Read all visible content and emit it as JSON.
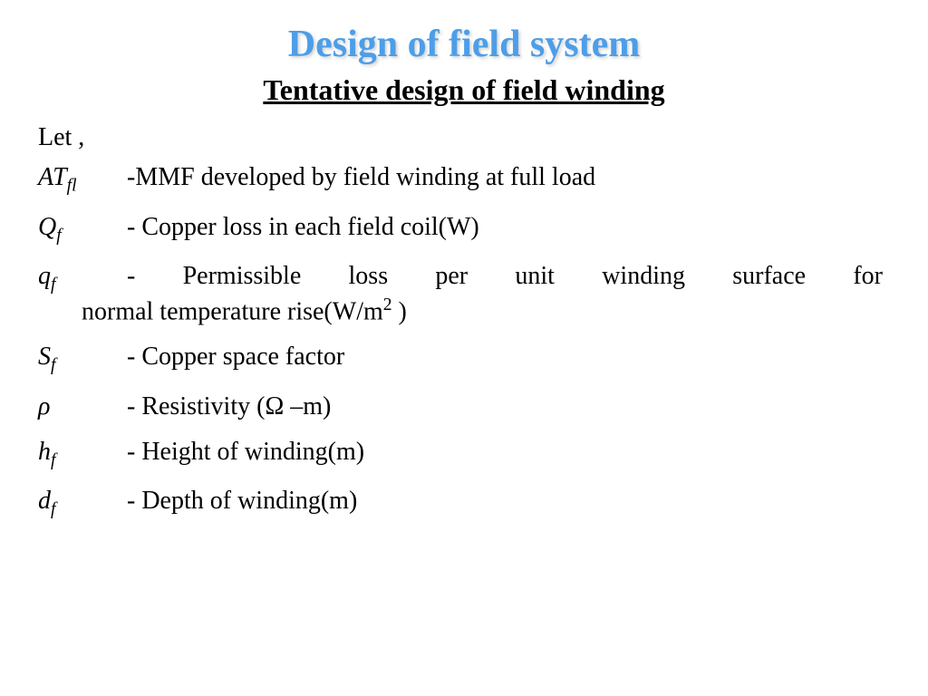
{
  "title": {
    "text": "Design of field system",
    "color": "#4d9ee8",
    "fontsize": 42
  },
  "subtitle": {
    "text": "Tentative design of field winding",
    "fontsize": 32
  },
  "intro": "Let ,",
  "definitions": [
    {
      "symbol_main": "AT",
      "symbol_sub": "fl",
      "description": "-MMF developed by field winding at full load"
    },
    {
      "symbol_main": "Q",
      "symbol_sub": "f",
      "description": "- Copper loss in each field coil(W)"
    },
    {
      "symbol_main": "q",
      "symbol_sub": "f",
      "description_line1": " - Permissible loss per unit winding surface for",
      "description_line2_pre": "normal temperature rise(W/m",
      "description_line2_sup": "2",
      "description_line2_post": " )",
      "justified": true
    },
    {
      "symbol_main": "S",
      "symbol_sub": "f",
      "description": "- Copper space factor"
    },
    {
      "symbol_main": "ρ",
      "symbol_sub": "",
      "description": "- Resistivity (Ω –m)"
    },
    {
      "symbol_main": "h",
      "symbol_sub": "f",
      "description": "- Height of winding(m)"
    },
    {
      "symbol_main": "d",
      "symbol_sub": "f",
      "description": "- Depth of winding(m)"
    }
  ],
  "styling": {
    "background_color": "#ffffff",
    "body_font": "Times New Roman",
    "body_fontsize": 28,
    "text_color": "#000000",
    "title_shadow": "2px 2px 3px rgba(180,180,180,0.6)"
  }
}
